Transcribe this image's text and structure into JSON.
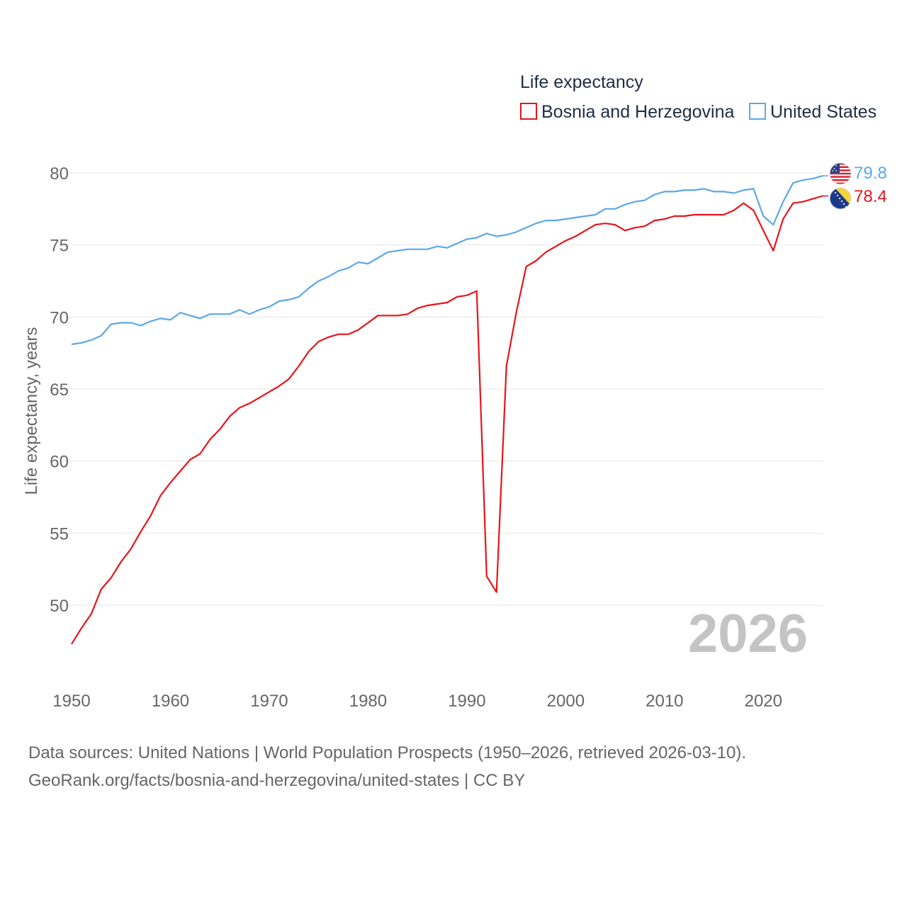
{
  "chart_data": {
    "type": "line",
    "title": "Life expectancy",
    "xlabel": "",
    "ylabel": "Life expectancy, years",
    "xlim": [
      1950,
      2026
    ],
    "ylim": [
      45.5,
      82.5
    ],
    "x_ticks": [
      "1950",
      "1960",
      "1970",
      "1980",
      "1990",
      "2000",
      "2010",
      "2020"
    ],
    "y_ticks": [
      "50",
      "55",
      "60",
      "65",
      "70",
      "75",
      "80"
    ],
    "year_label": "2026",
    "grid": true,
    "legend_position": "top-right",
    "years": [
      1950,
      1951,
      1952,
      1953,
      1954,
      1955,
      1956,
      1957,
      1958,
      1959,
      1960,
      1961,
      1962,
      1963,
      1964,
      1965,
      1966,
      1967,
      1968,
      1969,
      1970,
      1971,
      1972,
      1973,
      1974,
      1975,
      1976,
      1977,
      1978,
      1979,
      1980,
      1981,
      1982,
      1983,
      1984,
      1985,
      1986,
      1987,
      1988,
      1989,
      1990,
      1991,
      1992,
      1993,
      1994,
      1995,
      1996,
      1997,
      1998,
      1999,
      2000,
      2001,
      2002,
      2003,
      2004,
      2005,
      2006,
      2007,
      2008,
      2009,
      2010,
      2011,
      2012,
      2013,
      2014,
      2015,
      2016,
      2017,
      2018,
      2019,
      2020,
      2021,
      2022,
      2023,
      2024,
      2025,
      2026
    ],
    "series": [
      {
        "name": "Bosnia and Herzegovina",
        "color": "#e8141b",
        "end_label": "78.4",
        "flag": "bosnia-flag-icon",
        "values": [
          47.3,
          48.4,
          49.4,
          51.1,
          51.9,
          53.0,
          53.9,
          55.1,
          56.2,
          57.6,
          58.5,
          59.3,
          60.1,
          60.5,
          61.5,
          62.2,
          63.1,
          63.7,
          64.0,
          64.4,
          64.8,
          65.2,
          65.7,
          66.6,
          67.6,
          68.3,
          68.6,
          68.8,
          68.8,
          69.1,
          69.6,
          70.1,
          70.1,
          70.1,
          70.2,
          70.6,
          70.8,
          70.9,
          71.0,
          71.4,
          71.5,
          71.8,
          52.0,
          50.9,
          66.6,
          70.3,
          73.5,
          73.9,
          74.5,
          74.9,
          75.3,
          75.6,
          76.0,
          76.4,
          76.5,
          76.4,
          76.0,
          76.2,
          76.3,
          76.7,
          76.8,
          77.0,
          77.0,
          77.1,
          77.1,
          77.1,
          77.1,
          77.4,
          77.9,
          77.4,
          76.0,
          74.6,
          76.8,
          77.9,
          78.0,
          78.2,
          78.4
        ]
      },
      {
        "name": "United States",
        "color": "#5ca8e6",
        "end_label": "79.8",
        "flag": "usa-flag-icon",
        "values": [
          68.1,
          68.2,
          68.4,
          68.7,
          69.5,
          69.6,
          69.6,
          69.4,
          69.7,
          69.9,
          69.8,
          70.3,
          70.1,
          69.9,
          70.2,
          70.2,
          70.2,
          70.5,
          70.2,
          70.5,
          70.7,
          71.1,
          71.2,
          71.4,
          72.0,
          72.5,
          72.8,
          73.2,
          73.4,
          73.8,
          73.7,
          74.1,
          74.5,
          74.6,
          74.7,
          74.7,
          74.7,
          74.9,
          74.8,
          75.1,
          75.4,
          75.5,
          75.8,
          75.6,
          75.7,
          75.9,
          76.2,
          76.5,
          76.7,
          76.7,
          76.8,
          76.9,
          77.0,
          77.1,
          77.5,
          77.5,
          77.8,
          78.0,
          78.1,
          78.5,
          78.7,
          78.7,
          78.8,
          78.8,
          78.9,
          78.7,
          78.7,
          78.6,
          78.8,
          78.9,
          77.0,
          76.4,
          78.0,
          79.3,
          79.5,
          79.6,
          79.8
        ]
      }
    ]
  },
  "footer": {
    "source_line": "Data sources: United Nations | World Population Prospects (1950–2026, retrieved 2026-03-10).",
    "url_line": "GeoRank.org/facts/bosnia-and-herzegovina/united-states | CC BY"
  }
}
